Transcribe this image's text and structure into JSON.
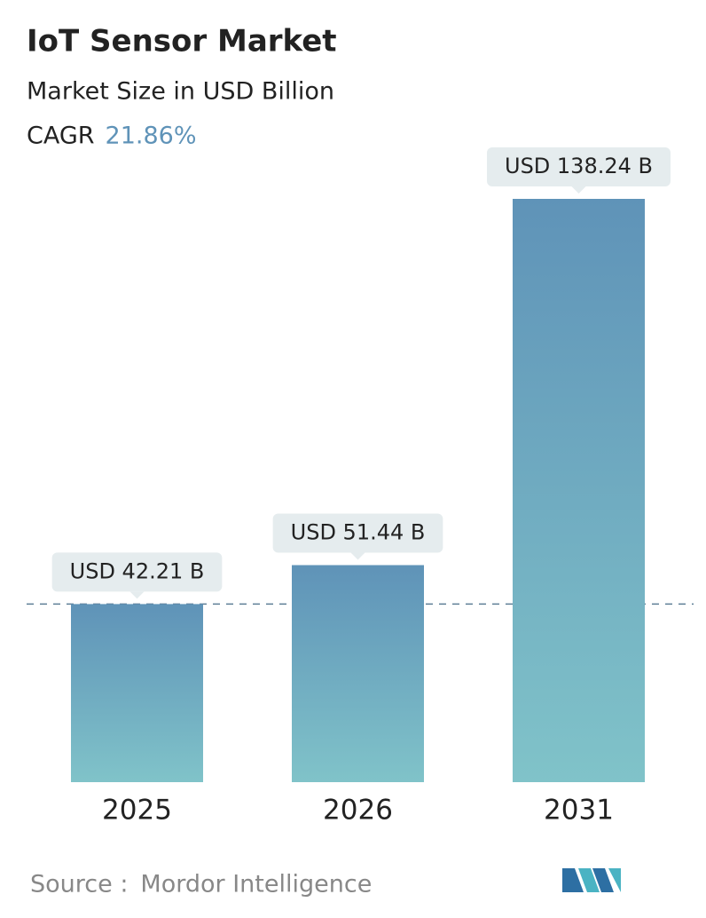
{
  "chart_data": {
    "type": "bar",
    "title": "IoT Sensor Market",
    "subtitle": "Market Size in USD Billion",
    "cagr_label": "CAGR",
    "cagr_value": "21.86%",
    "categories": [
      "2025",
      "2026",
      "2031"
    ],
    "values": [
      42.21,
      51.44,
      138.24
    ],
    "value_labels": [
      "USD 42.21 B",
      "USD 51.44 B",
      "USD 138.24 B"
    ],
    "color_top": "#5f93b8",
    "color_bottom": "#80c3c9",
    "source_label": "Source :",
    "source": "Mordor Intelligence"
  }
}
